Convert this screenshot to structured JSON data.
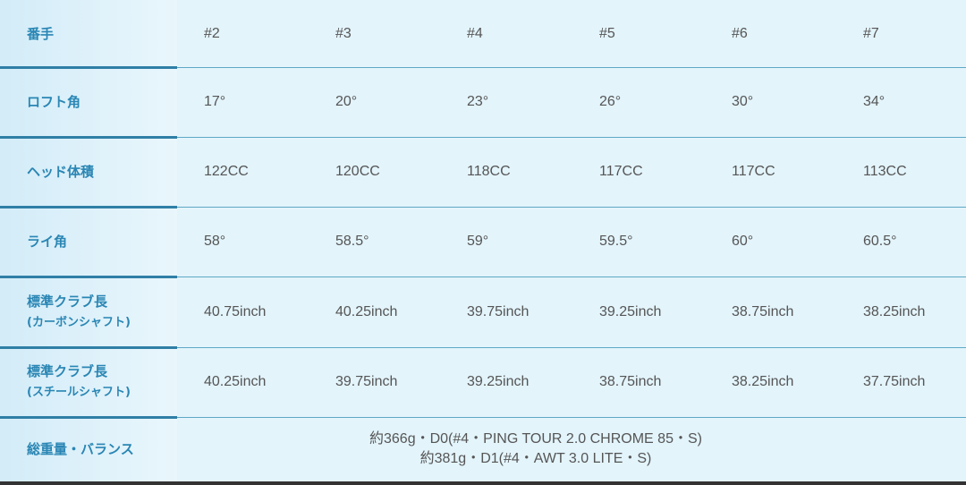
{
  "rows": [
    {
      "label": "番手",
      "values": [
        "#2",
        "#3",
        "#4",
        "#5",
        "#6",
        "#7"
      ]
    },
    {
      "label": "ロフト角",
      "values": [
        "17°",
        "20°",
        "23°",
        "26°",
        "30°",
        "34°"
      ]
    },
    {
      "label": "ヘッド体積",
      "values": [
        "122CC",
        "120CC",
        "118CC",
        "117CC",
        "117CC",
        "113CC"
      ]
    },
    {
      "label": "ライ角",
      "values": [
        "58°",
        "58.5°",
        "59°",
        "59.5°",
        "60°",
        "60.5°"
      ]
    },
    {
      "label": "標準クラブ長",
      "sublabel": "(カーボンシャフト)",
      "values": [
        "40.75inch",
        "40.25inch",
        "39.75inch",
        "39.25inch",
        "38.75inch",
        "38.25inch"
      ]
    },
    {
      "label": "標準クラブ長",
      "sublabel": "(スチールシャフト)",
      "values": [
        "40.25inch",
        "39.75inch",
        "39.25inch",
        "38.75inch",
        "38.25inch",
        "37.75inch"
      ]
    }
  ],
  "weight": {
    "label": "総重量・バランス",
    "lines": [
      "約366g・D0(#4・PING TOUR 2.0 CHROME 85・S)",
      "約381g・D1(#4・AWT 3.0 LITE・S)"
    ]
  }
}
